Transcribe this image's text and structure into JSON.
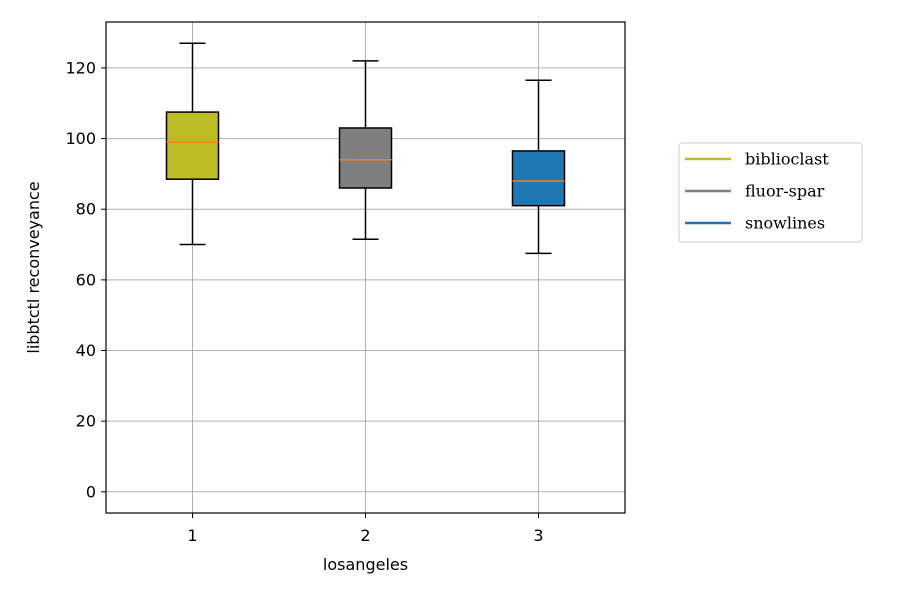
{
  "chart_data": {
    "type": "box",
    "xlabel": "losangeles",
    "ylabel": "libbtctl reconveyance",
    "ylim": [
      -6,
      133
    ],
    "yticks": [
      0,
      20,
      40,
      60,
      80,
      100,
      120
    ],
    "xticks": [
      1,
      2,
      3
    ],
    "grid": true,
    "legend_position": "right",
    "series": [
      {
        "name": "biblioclast",
        "x": 1,
        "whisker_low": 70,
        "q1": 88.5,
        "median": 99,
        "q3": 107.5,
        "whisker_high": 127,
        "color": "#bcbd22"
      },
      {
        "name": "fluor-spar",
        "x": 2,
        "whisker_low": 71.5,
        "q1": 86,
        "median": 94,
        "q3": 103,
        "whisker_high": 122,
        "color": "#7f7f7f"
      },
      {
        "name": "snowlines",
        "x": 3,
        "whisker_low": 67.5,
        "q1": 81,
        "median": 88,
        "q3": 96.5,
        "whisker_high": 116.5,
        "color": "#1f77b4"
      }
    ],
    "median_color": "#ff7f0e"
  }
}
